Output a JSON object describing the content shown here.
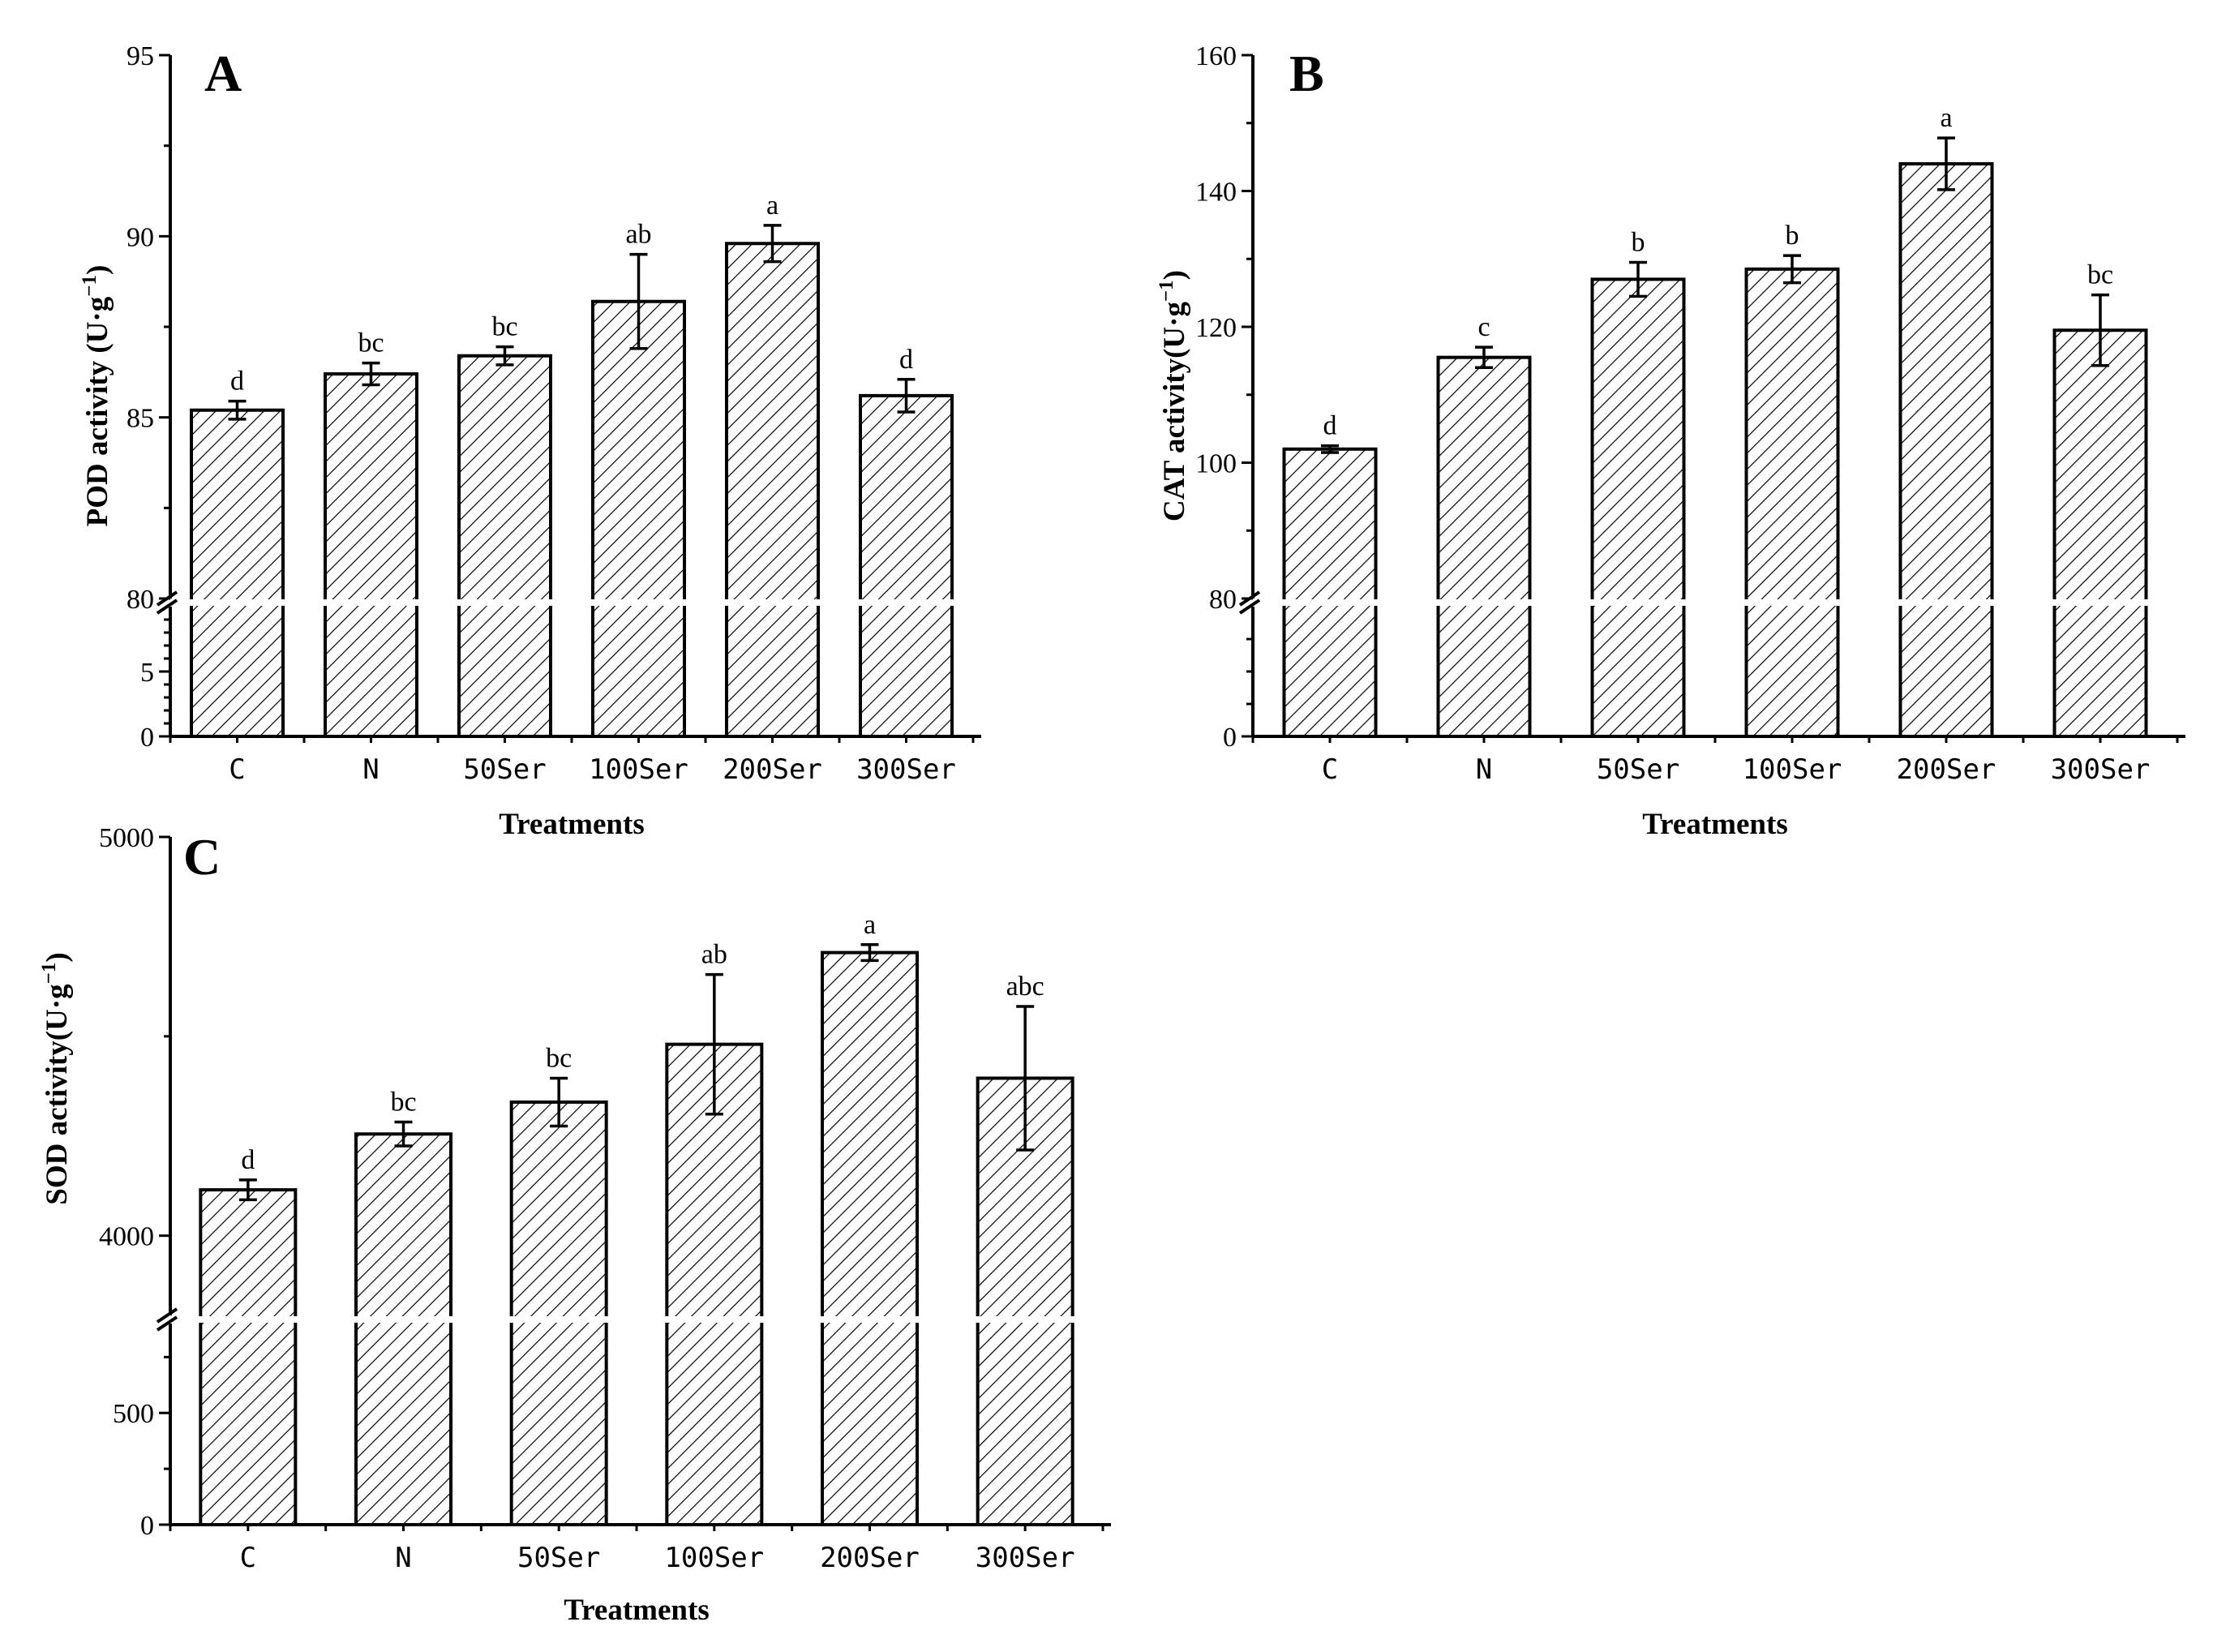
{
  "chart_data": [
    {
      "panel": "A",
      "type": "bar",
      "title": "",
      "xlabel": "Treatments",
      "ylabel": "POD activity (U·g⁻¹)",
      "categories": [
        "C",
        "N",
        "50Ser",
        "100Ser",
        "200Ser",
        "300Ser"
      ],
      "values": [
        85.2,
        86.2,
        86.7,
        88.2,
        89.8,
        85.6
      ],
      "errors": [
        0.25,
        0.3,
        0.25,
        1.3,
        0.5,
        0.45
      ],
      "significance": [
        "d",
        "bc",
        "bc",
        "ab",
        "a",
        "d"
      ],
      "broken_axis": {
        "lower_range": [
          0,
          10
        ],
        "upper_range": [
          80,
          95
        ],
        "break_at": 80
      },
      "yticks_upper": [
        "80",
        "85",
        "90",
        "95"
      ],
      "yticks_lower": [
        "0",
        "5"
      ],
      "grid": false
    },
    {
      "panel": "B",
      "type": "bar",
      "title": "",
      "xlabel": "Treatments",
      "ylabel": "CAT activity(U·g⁻¹)",
      "categories": [
        "C",
        "N",
        "50Ser",
        "100Ser",
        "200Ser",
        "300Ser"
      ],
      "values": [
        102,
        115.5,
        127,
        128.5,
        144,
        119.5
      ],
      "errors": [
        0.5,
        1.5,
        2.5,
        2,
        3.8,
        5.2
      ],
      "significance": [
        "d",
        "c",
        "b",
        "b",
        "a",
        "bc"
      ],
      "broken_axis": {
        "lower_range": [
          0,
          20
        ],
        "upper_range": [
          80,
          160
        ],
        "break_at": 80
      },
      "yticks_upper": [
        "80",
        "100",
        "120",
        "140",
        "160"
      ],
      "yticks_lower": [
        "0"
      ],
      "grid": false
    },
    {
      "panel": "C",
      "type": "bar",
      "title": "",
      "xlabel": "Treatments",
      "ylabel": "SOD activity(U·g⁻¹)",
      "categories": [
        "C",
        "N",
        "50Ser",
        "100Ser",
        "200Ser",
        "300Ser"
      ],
      "values": [
        4115,
        4255,
        4335,
        4480,
        4710,
        4395
      ],
      "errors": [
        25,
        30,
        60,
        175,
        20,
        180
      ],
      "significance": [
        "d",
        "bc",
        "bc",
        "ab",
        "a",
        "abc"
      ],
      "broken_axis": {
        "lower_range": [
          0,
          900
        ],
        "upper_range": [
          3800,
          5000
        ],
        "break_at": 3800
      },
      "yticks_upper": [
        "4000",
        "5000"
      ],
      "yticks_lower": [
        "0",
        "500"
      ],
      "grid": false
    }
  ]
}
